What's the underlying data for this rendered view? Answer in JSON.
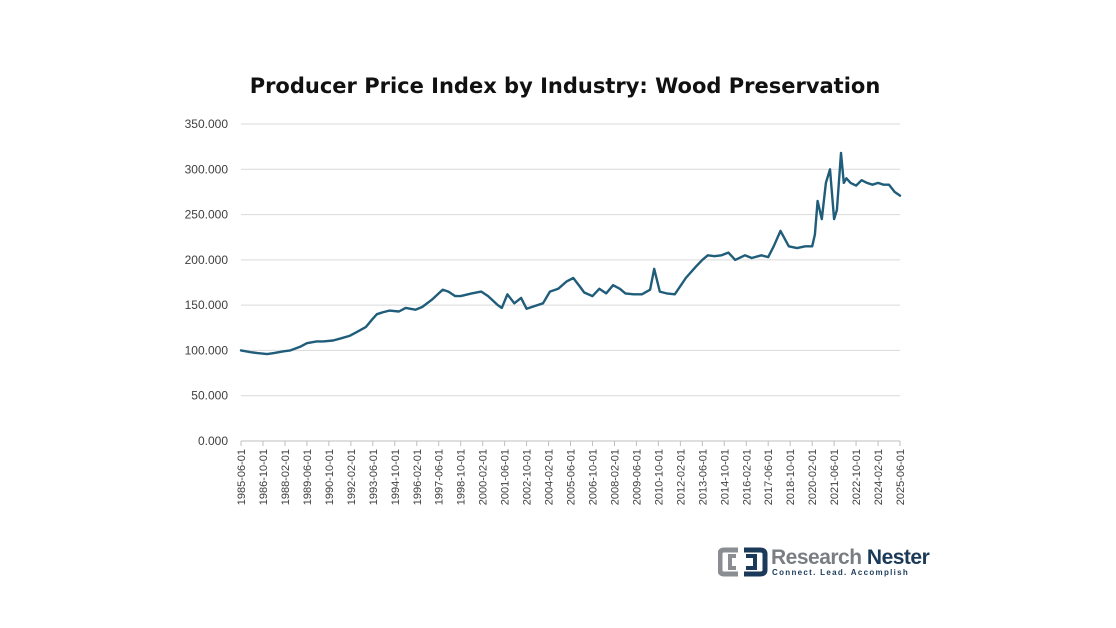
{
  "chart_data": {
    "type": "line",
    "title": "Producer Price Index by Industry: Wood Preservation",
    "xlabel": "",
    "ylabel": "",
    "ylim": [
      0,
      350
    ],
    "y_ticks": [
      "0.000",
      "50.000",
      "100.000",
      "150.000",
      "200.000",
      "250.000",
      "300.000",
      "350.000"
    ],
    "x_ticks": [
      "1985-06-01",
      "1986-10-01",
      "1988-02-01",
      "1989-06-01",
      "1990-10-01",
      "1992-02-01",
      "1993-06-01",
      "1994-10-01",
      "1996-02-01",
      "1997-06-01",
      "1998-10-01",
      "2000-02-01",
      "2001-06-01",
      "2002-10-01",
      "2004-02-01",
      "2005-06-01",
      "2006-10-01",
      "2008-02-01",
      "2009-06-01",
      "2010-10-01",
      "2012-02-01",
      "2013-06-01",
      "2014-10-01",
      "2016-02-01",
      "2017-06-01",
      "2018-10-01",
      "2020-02-01",
      "2021-06-01",
      "2022-10-01",
      "2024-02-01",
      "2025-06-01"
    ],
    "grid": true,
    "legend": "none",
    "color": "#1f5d7a",
    "series": [
      {
        "x": [
          "1985-06-01",
          "1986-01-01",
          "1986-06-01",
          "1987-01-01",
          "1987-06-01",
          "1988-01-01",
          "1988-06-01",
          "1989-01-01",
          "1989-06-01",
          "1990-01-01",
          "1990-06-01",
          "1991-01-01",
          "1991-06-01",
          "1992-01-01",
          "1992-06-01",
          "1993-01-01",
          "1993-06-01",
          "1993-09-01",
          "1994-01-01",
          "1994-06-01",
          "1995-01-01",
          "1995-06-01",
          "1996-01-01",
          "1996-06-01",
          "1997-01-01",
          "1997-06-01",
          "1997-09-01",
          "1998-01-01",
          "1998-06-01",
          "1998-10-01",
          "1999-06-01",
          "2000-01-01",
          "2000-06-01",
          "2001-01-01",
          "2001-04-01",
          "2001-08-01",
          "2002-01-01",
          "2002-06-01",
          "2002-10-01",
          "2003-04-01",
          "2003-10-01",
          "2004-03-01",
          "2004-09-01",
          "2005-03-01",
          "2005-08-01",
          "2006-01-01",
          "2006-04-01",
          "2006-10-01",
          "2007-03-01",
          "2007-08-01",
          "2008-01-01",
          "2008-06-01",
          "2008-10-01",
          "2009-04-01",
          "2009-10-01",
          "2010-04-01",
          "2010-07-01",
          "2010-11-01",
          "2011-04-01",
          "2011-10-01",
          "2012-06-01",
          "2013-01-01",
          "2013-06-01",
          "2013-10-01",
          "2014-03-01",
          "2014-08-01",
          "2015-01-01",
          "2015-06-01",
          "2016-01-01",
          "2016-06-01",
          "2017-01-01",
          "2017-06-01",
          "2017-10-01",
          "2018-03-01",
          "2018-09-01",
          "2019-03-01",
          "2019-09-01",
          "2020-02-01",
          "2020-04-01",
          "2020-06-01",
          "2020-09-01",
          "2020-12-01",
          "2021-03-01",
          "2021-06-01",
          "2021-08-01",
          "2021-11-01",
          "2022-01-01",
          "2022-03-01",
          "2022-06-01",
          "2022-10-01",
          "2023-02-01",
          "2023-06-01",
          "2023-10-01",
          "2024-02-01",
          "2024-06-01",
          "2024-10-01",
          "2025-02-01",
          "2025-06-01"
        ],
        "y": [
          100,
          98,
          97,
          96,
          97,
          99,
          100,
          104,
          108,
          110,
          110,
          111,
          113,
          116,
          120,
          126,
          135,
          140,
          142,
          144,
          143,
          147,
          145,
          148,
          156,
          163,
          167,
          165,
          160,
          160,
          163,
          165,
          160,
          150,
          147,
          162,
          152,
          158,
          146,
          149,
          152,
          165,
          168,
          176,
          180,
          170,
          164,
          160,
          168,
          163,
          172,
          168,
          163,
          162,
          162,
          167,
          190,
          165,
          163,
          162,
          180,
          192,
          200,
          205,
          204,
          205,
          208,
          200,
          205,
          202,
          205,
          203,
          215,
          232,
          215,
          213,
          215,
          215,
          228,
          265,
          245,
          285,
          300,
          245,
          255,
          318,
          285,
          290,
          285,
          282,
          288,
          285,
          283,
          285,
          283,
          283,
          275,
          271
        ]
      }
    ]
  },
  "logo": {
    "name_part1": "Research",
    "name_part2": " Nester",
    "tagline": "Connect. Lead. Accomplish"
  }
}
